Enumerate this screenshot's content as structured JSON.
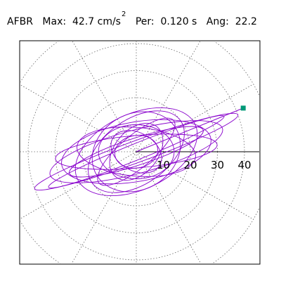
{
  "header": {
    "station": "AFBR",
    "max_label": "Max:",
    "max_value": "42.7",
    "max_unit": "cm/s",
    "max_unit_exp": "2",
    "per_label": "Per:",
    "per_value": "0.120 s",
    "ang_label": "Ang:",
    "ang_value": "22.2"
  },
  "chart_data": {
    "type": "polar-orbit",
    "title": "AFBR  Max: 42.7 cm/s2  Per: 0.120 s  Ang: 22.2",
    "units": "cm/s2",
    "radial_ticks": [
      10,
      20,
      30,
      40
    ],
    "radial_tick_labels": [
      "10",
      "20",
      "30",
      "40"
    ],
    "r_max": 50,
    "angular_grid_step_deg": 30,
    "grid": true,
    "max_point": {
      "amplitude": 42.7,
      "angle_deg": 22.2
    },
    "orbits": [
      {
        "a": 40,
        "b": 4,
        "rot": 20
      },
      {
        "a": 33,
        "b": 8,
        "rot": 15
      },
      {
        "a": 28,
        "b": 11,
        "rot": 10
      },
      {
        "a": 24,
        "b": 14,
        "rot": 25
      },
      {
        "a": 30,
        "b": 6,
        "rot": 5
      },
      {
        "a": 20,
        "b": 12,
        "rot": 35
      },
      {
        "a": 22,
        "b": 9,
        "rot": -5
      },
      {
        "a": 17,
        "b": 14,
        "rot": 30
      },
      {
        "a": 14,
        "b": 10,
        "rot": 0
      },
      {
        "a": 12,
        "b": 8,
        "rot": 50
      },
      {
        "a": 26,
        "b": 5,
        "rot": 18
      },
      {
        "a": 10,
        "b": 7,
        "rot": -30
      },
      {
        "a": 18,
        "b": 6,
        "rot": 40
      },
      {
        "a": 8,
        "b": 6,
        "rot": 10
      },
      {
        "a": 35,
        "b": 3,
        "rot": 22
      }
    ],
    "colors": {
      "trace": "#8800cc",
      "marker": "#009977",
      "grid": "#666666"
    }
  }
}
